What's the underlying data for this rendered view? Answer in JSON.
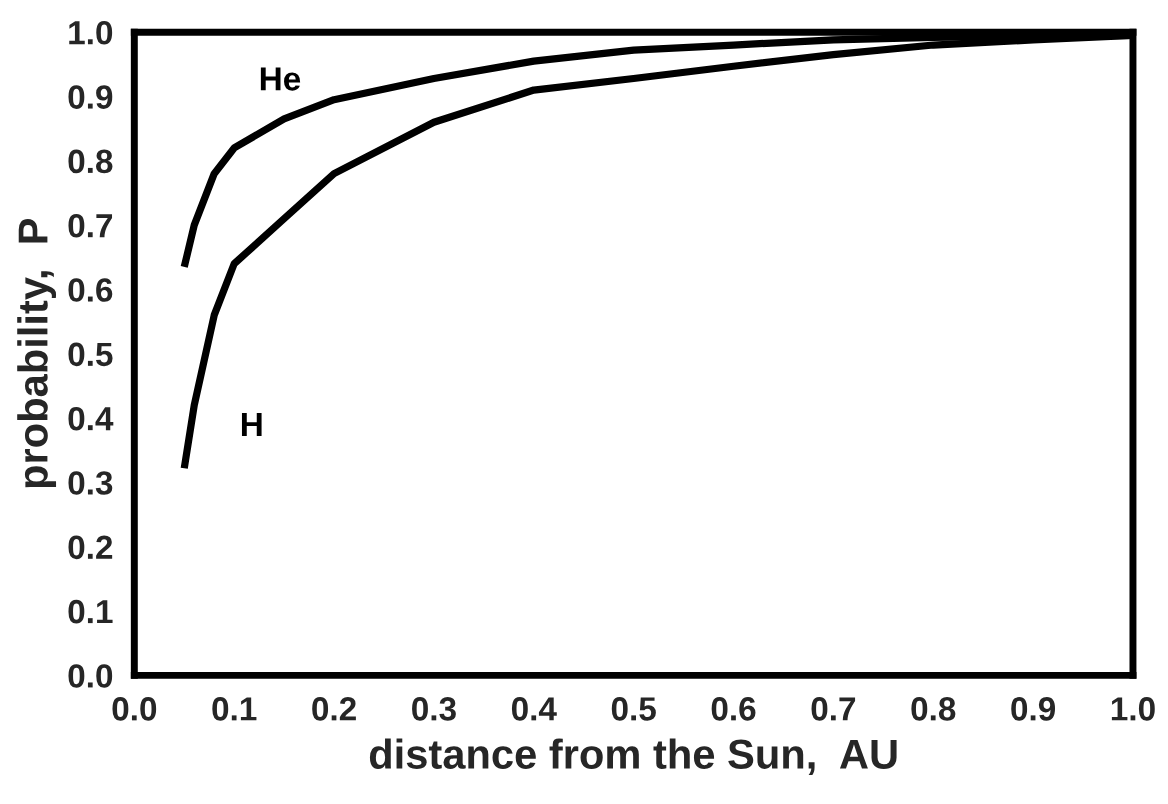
{
  "chart_data": {
    "type": "line",
    "xlabel": "distance from the Sun,  AU",
    "ylabel": "probability,  P",
    "xlim": [
      0.0,
      1.0
    ],
    "ylim": [
      0.0,
      1.0
    ],
    "xticks": [
      {
        "value": 0,
        "label": "0.0"
      },
      0.1,
      0.2,
      0.3,
      0.4,
      0.5,
      0.6,
      0.7,
      0.8,
      0.9,
      {
        "value": 1,
        "label": "1.0"
      }
    ],
    "yticks": [
      {
        "value": 0,
        "label": "0.0"
      },
      0.1,
      0.2,
      0.3,
      0.4,
      0.5,
      0.6,
      0.7,
      0.8,
      0.9,
      {
        "value": 1,
        "label": "1.0"
      }
    ],
    "grid": false,
    "legend": false,
    "marker": "none",
    "line_style": "solid",
    "series": [
      {
        "name": "He",
        "color": "#000000",
        "x": [
          0.05,
          0.06,
          0.08,
          0.1,
          0.15,
          0.2,
          0.3,
          0.4,
          0.5,
          0.6,
          0.7,
          0.8,
          0.9,
          1.0
        ],
        "values": [
          0.635,
          0.7,
          0.78,
          0.82,
          0.865,
          0.895,
          0.928,
          0.955,
          0.972,
          0.98,
          0.988,
          0.992,
          0.994,
          0.995
        ]
      },
      {
        "name": "H",
        "color": "#000000",
        "x": [
          0.05,
          0.06,
          0.08,
          0.1,
          0.15,
          0.2,
          0.3,
          0.4,
          0.5,
          0.6,
          0.7,
          0.8,
          0.9,
          1.0
        ],
        "values": [
          0.322,
          0.42,
          0.56,
          0.64,
          0.71,
          0.78,
          0.86,
          0.91,
          0.928,
          0.947,
          0.965,
          0.98,
          0.988,
          0.995
        ]
      }
    ]
  }
}
